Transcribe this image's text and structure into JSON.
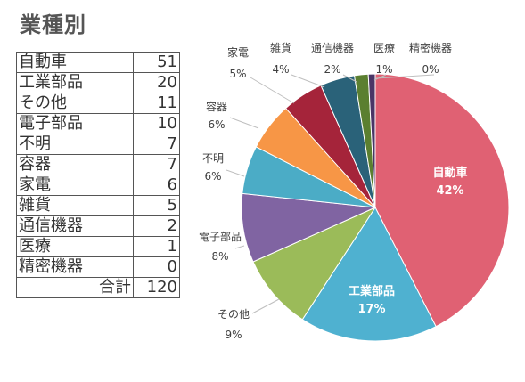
{
  "title": "業種別",
  "table": {
    "rows": [
      {
        "label": "自動車",
        "value": "51"
      },
      {
        "label": "工業部品",
        "value": "20"
      },
      {
        "label": "その他",
        "value": "11"
      },
      {
        "label": "電子部品",
        "value": "10"
      },
      {
        "label": "不明",
        "value": "7"
      },
      {
        "label": "容器",
        "value": "7"
      },
      {
        "label": "家電",
        "value": "6"
      },
      {
        "label": "雑貨",
        "value": "5"
      },
      {
        "label": "通信機器",
        "value": "2"
      },
      {
        "label": "医療",
        "value": "1"
      },
      {
        "label": "精密機器",
        "value": "0"
      }
    ],
    "total_label": "合計",
    "total_value": "120"
  },
  "chart_data": {
    "type": "pie",
    "slices": [
      {
        "label": "自動車",
        "value": 51,
        "percent_label": "42%",
        "color": "#e06173"
      },
      {
        "label": "工業部品",
        "value": 20,
        "percent_label": "17%",
        "color": "#4fb1d0"
      },
      {
        "label": "その他",
        "value": 11,
        "percent_label": "9%",
        "color": "#9bbb59"
      },
      {
        "label": "電子部品",
        "value": 10,
        "percent_label": "8%",
        "color": "#8064a2"
      },
      {
        "label": "不明",
        "value": 7,
        "percent_label": "6%",
        "color": "#4bacc6"
      },
      {
        "label": "容器",
        "value": 7,
        "percent_label": "6%",
        "color": "#f79646"
      },
      {
        "label": "家電",
        "value": 6,
        "percent_label": "5%",
        "color": "#a5243a"
      },
      {
        "label": "雑貨",
        "value": 5,
        "percent_label": "4%",
        "color": "#2a6279"
      },
      {
        "label": "通信機器",
        "value": 2,
        "percent_label": "2%",
        "color": "#5b7f30"
      },
      {
        "label": "医療",
        "value": 1,
        "percent_label": "1%",
        "color": "#4a3566"
      },
      {
        "label": "精密機器",
        "value": 0,
        "percent_label": "0%",
        "color": "#1f6075"
      }
    ],
    "start_angle": "12 o'clock, clockwise",
    "legend": "none (labels next to slices)"
  }
}
